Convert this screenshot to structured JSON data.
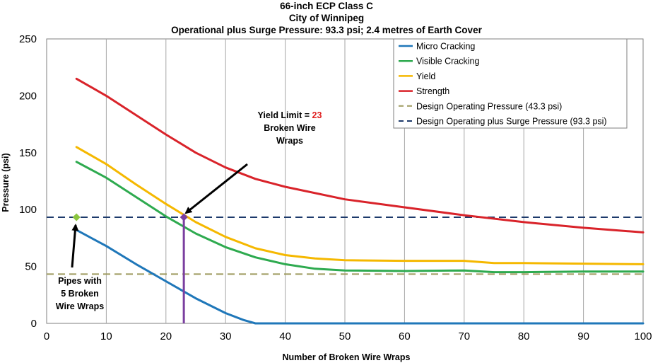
{
  "chart_data": {
    "type": "line",
    "title": [
      "66-inch ECP Class  C",
      "City of Winnipeg",
      "Operational plus Surge Pressure:  93.3 psi; 2.4 metres of Earth Cover"
    ],
    "xlabel": "Number of Broken Wire Wraps",
    "ylabel": "Pressure (psi)",
    "xlim": [
      0,
      100
    ],
    "ylim": [
      0,
      250
    ],
    "xticks": [
      "0",
      "10",
      "20",
      "30",
      "40",
      "50",
      "60",
      "70",
      "80",
      "90",
      "100"
    ],
    "yticks": [
      "0",
      "50",
      "100",
      "150",
      "200",
      "250"
    ],
    "xtick_values": [
      0,
      10,
      20,
      30,
      40,
      50,
      60,
      70,
      80,
      90,
      100
    ],
    "ytick_values": [
      0,
      50,
      100,
      150,
      200,
      250
    ],
    "grid": "vertical",
    "legend_position": "top-right",
    "series": [
      {
        "name": "Micro Cracking",
        "color": "#1f77b9",
        "style": "solid",
        "x": [
          5,
          10,
          15,
          20,
          25,
          30,
          33,
          35,
          36,
          100
        ],
        "y": [
          82,
          68,
          52,
          37,
          22,
          9,
          3,
          0,
          0,
          0
        ]
      },
      {
        "name": "Visible Cracking",
        "color": "#2eaa4f",
        "style": "solid",
        "x": [
          5,
          10,
          15,
          20,
          25,
          30,
          35,
          40,
          45,
          50,
          60,
          70,
          75,
          80,
          90,
          100
        ],
        "y": [
          142,
          128,
          111,
          94,
          79,
          67,
          58,
          52,
          48,
          46.5,
          46,
          46.5,
          45,
          45,
          45.5,
          45.5
        ]
      },
      {
        "name": "Yield",
        "color": "#f5b800",
        "style": "solid",
        "x": [
          5,
          10,
          15,
          20,
          25,
          30,
          35,
          40,
          45,
          50,
          60,
          65,
          70,
          75,
          80,
          90,
          100
        ],
        "y": [
          155,
          140,
          122,
          105,
          89,
          76,
          66,
          60,
          57,
          55.5,
          55,
          55,
          55,
          53,
          53,
          52.5,
          52
        ]
      },
      {
        "name": "Strength",
        "color": "#d9232a",
        "style": "solid",
        "x": [
          5,
          10,
          15,
          20,
          25,
          30,
          35,
          40,
          50,
          60,
          70,
          80,
          90,
          100
        ],
        "y": [
          215,
          200,
          183,
          166,
          150,
          137,
          127,
          120,
          109,
          102,
          95,
          89,
          84,
          80
        ]
      },
      {
        "name": "Design Operating Pressure (43.3 psi)",
        "color": "#9e9a5e",
        "style": "dashed",
        "x": [
          0,
          100
        ],
        "y": [
          43.3,
          43.3
        ]
      },
      {
        "name": "Design Operating plus Surge Pressure (93.3 psi)",
        "color": "#1d3a6b",
        "style": "dashed",
        "x": [
          0,
          100
        ],
        "y": [
          93.3,
          93.3
        ]
      }
    ],
    "markers": [
      {
        "name": "Pipes with 5 Broken Wire Wraps",
        "x": 5,
        "y": 93.3,
        "color": "#8cc63f",
        "shape": "diamond"
      },
      {
        "name": "Yield Limit",
        "x": 23,
        "y": 93.3,
        "color": "#7b3fa0",
        "shape": "diamond"
      }
    ],
    "vertical_line": {
      "x": 23,
      "y_from": 0,
      "y_to": 93.3,
      "color": "#7b3fa0"
    },
    "annotations": {
      "yield_limit_prefix": "Yield Limit = ",
      "yield_limit_value": "23",
      "yield_limit_value_color": "#e02020",
      "yield_limit_line2": "Broken Wire",
      "yield_limit_line3": "Wraps",
      "pipes_line1": "Pipes with",
      "pipes_line2": "5 Broken",
      "pipes_line3": "Wire Wraps"
    }
  }
}
